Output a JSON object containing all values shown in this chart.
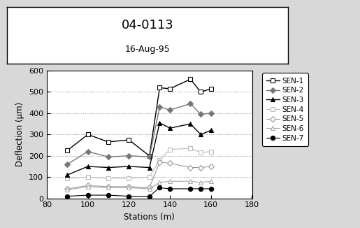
{
  "title_main": "04-0113",
  "title_sub": "16-Aug-95",
  "xlabel": "Stations (m)",
  "ylabel": "Deflection (μm)",
  "xlim": [
    80,
    180
  ],
  "ylim": [
    0,
    600
  ],
  "xticks": [
    80,
    100,
    120,
    140,
    160,
    180
  ],
  "yticks": [
    0,
    100,
    200,
    300,
    400,
    500,
    600
  ],
  "stations": [
    90,
    100,
    110,
    120,
    130,
    135,
    140,
    150,
    155,
    160
  ],
  "sen1": [
    225,
    300,
    265,
    275,
    200,
    520,
    515,
    560,
    500,
    515
  ],
  "sen2": [
    160,
    220,
    195,
    200,
    195,
    430,
    415,
    445,
    395,
    400
  ],
  "sen3": [
    110,
    150,
    145,
    150,
    145,
    355,
    330,
    350,
    300,
    320
  ],
  "sen4": [
    95,
    100,
    95,
    95,
    100,
    180,
    230,
    235,
    215,
    220
  ],
  "sen5": [
    45,
    60,
    55,
    55,
    50,
    170,
    165,
    145,
    145,
    150
  ],
  "sen6": [
    40,
    55,
    50,
    50,
    45,
    75,
    80,
    80,
    75,
    80
  ],
  "sen7": [
    10,
    15,
    15,
    10,
    10,
    50,
    45,
    45,
    45,
    45
  ],
  "sen1_color": "#000000",
  "sen2_color": "#777777",
  "sen3_color": "#000000",
  "sen4_color": "#bbbbbb",
  "sen5_color": "#999999",
  "sen6_color": "#aaaaaa",
  "sen7_color": "#000000",
  "fig_bg": "#d8d8d8",
  "plot_bg": "#ffffff",
  "grid_color": "#888888",
  "title_box_bg": "#ffffff"
}
